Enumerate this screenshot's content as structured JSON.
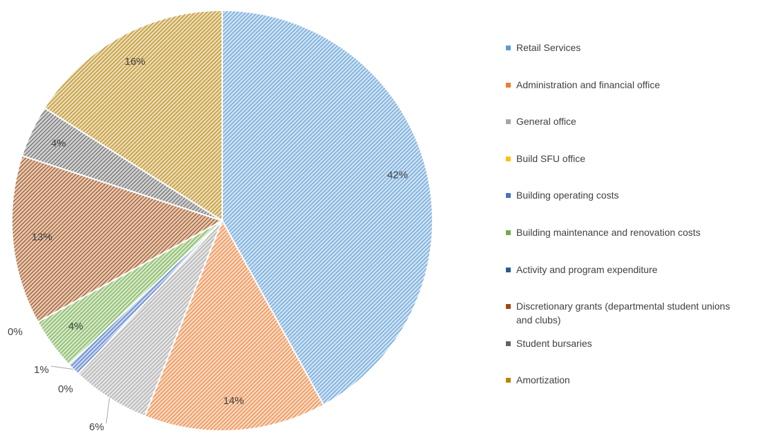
{
  "chart_data": {
    "type": "pie",
    "categories": [
      "Retail Services",
      "Administration and financial office",
      "General office",
      "Build SFU office",
      "Building operating costs",
      "Building maintenance and renovation costs",
      "Activity and program expenditure",
      "Discretionary grants (departmental student unions and clubs)",
      "Student bursaries",
      "Amortization"
    ],
    "values": [
      42,
      14,
      6,
      0,
      1,
      4,
      0,
      13,
      4,
      16
    ],
    "value_labels": [
      "42%",
      "14%",
      "6%",
      "0%",
      "1%",
      "4%",
      "0%",
      "13%",
      "4%",
      "16%"
    ],
    "colors": [
      "#5b9bd5",
      "#ed7d31",
      "#a5a5a5",
      "#ffc000",
      "#4472c4",
      "#70ad47",
      "#255e91",
      "#9e480e",
      "#636363",
      "#b8860b"
    ],
    "legend": "right"
  }
}
